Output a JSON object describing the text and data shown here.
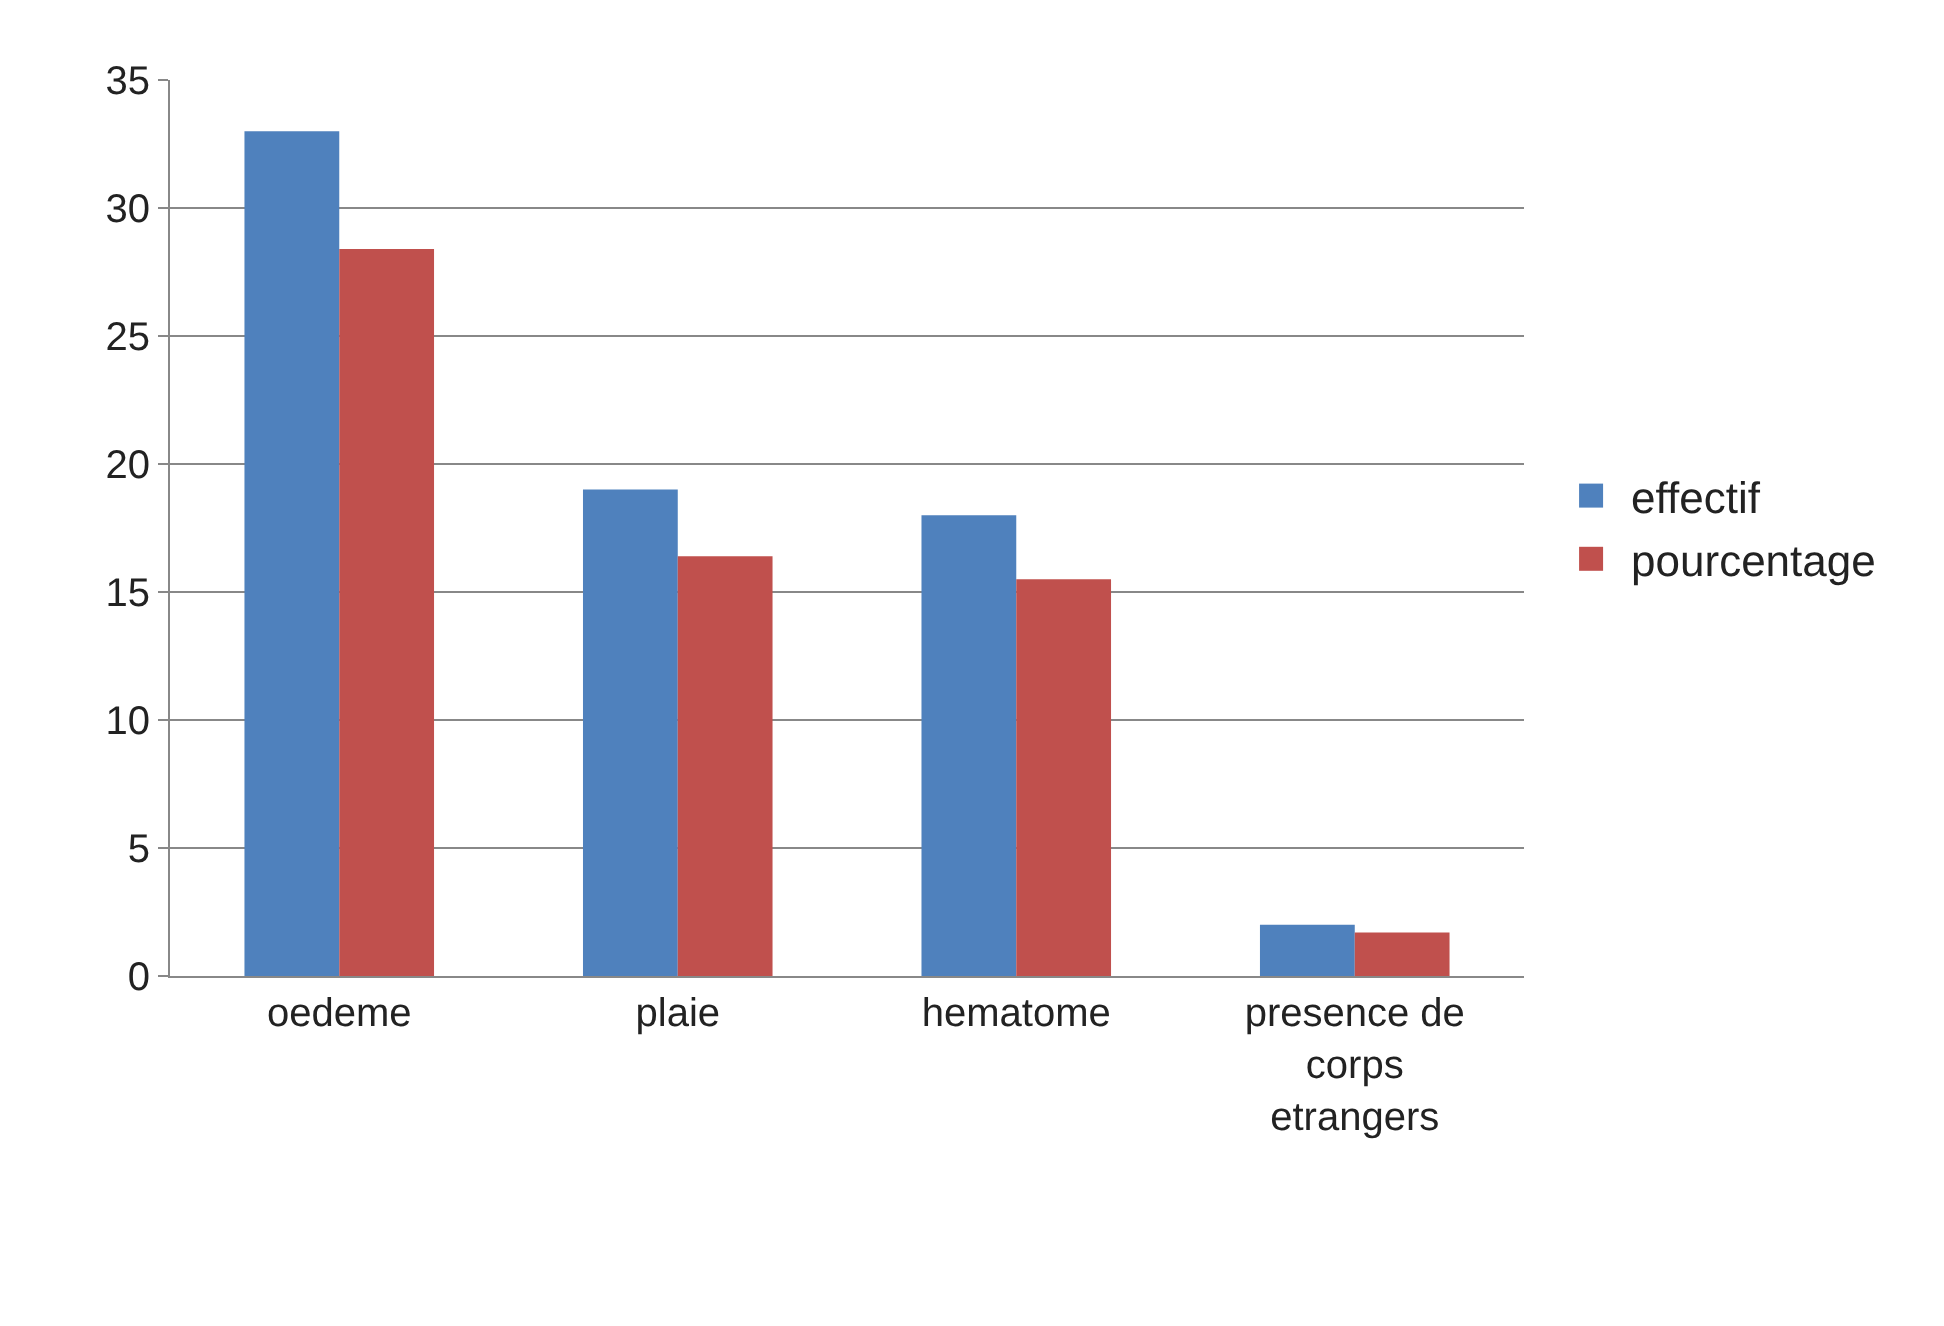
{
  "chart_data": {
    "type": "bar",
    "categories": [
      "oedeme",
      "plaie",
      "hematome",
      "presence de corps etrangers"
    ],
    "series": [
      {
        "name": "effectif",
        "color": "#4f81bd",
        "values": [
          33,
          19,
          18,
          2
        ]
      },
      {
        "name": "pourcentage",
        "color": "#c0504d",
        "values": [
          28.4,
          16.4,
          15.5,
          1.7
        ]
      }
    ],
    "ylim": [
      0,
      35
    ],
    "yticks": [
      0,
      5,
      10,
      15,
      20,
      25,
      30,
      35
    ],
    "grid": "y",
    "legend": "right"
  }
}
